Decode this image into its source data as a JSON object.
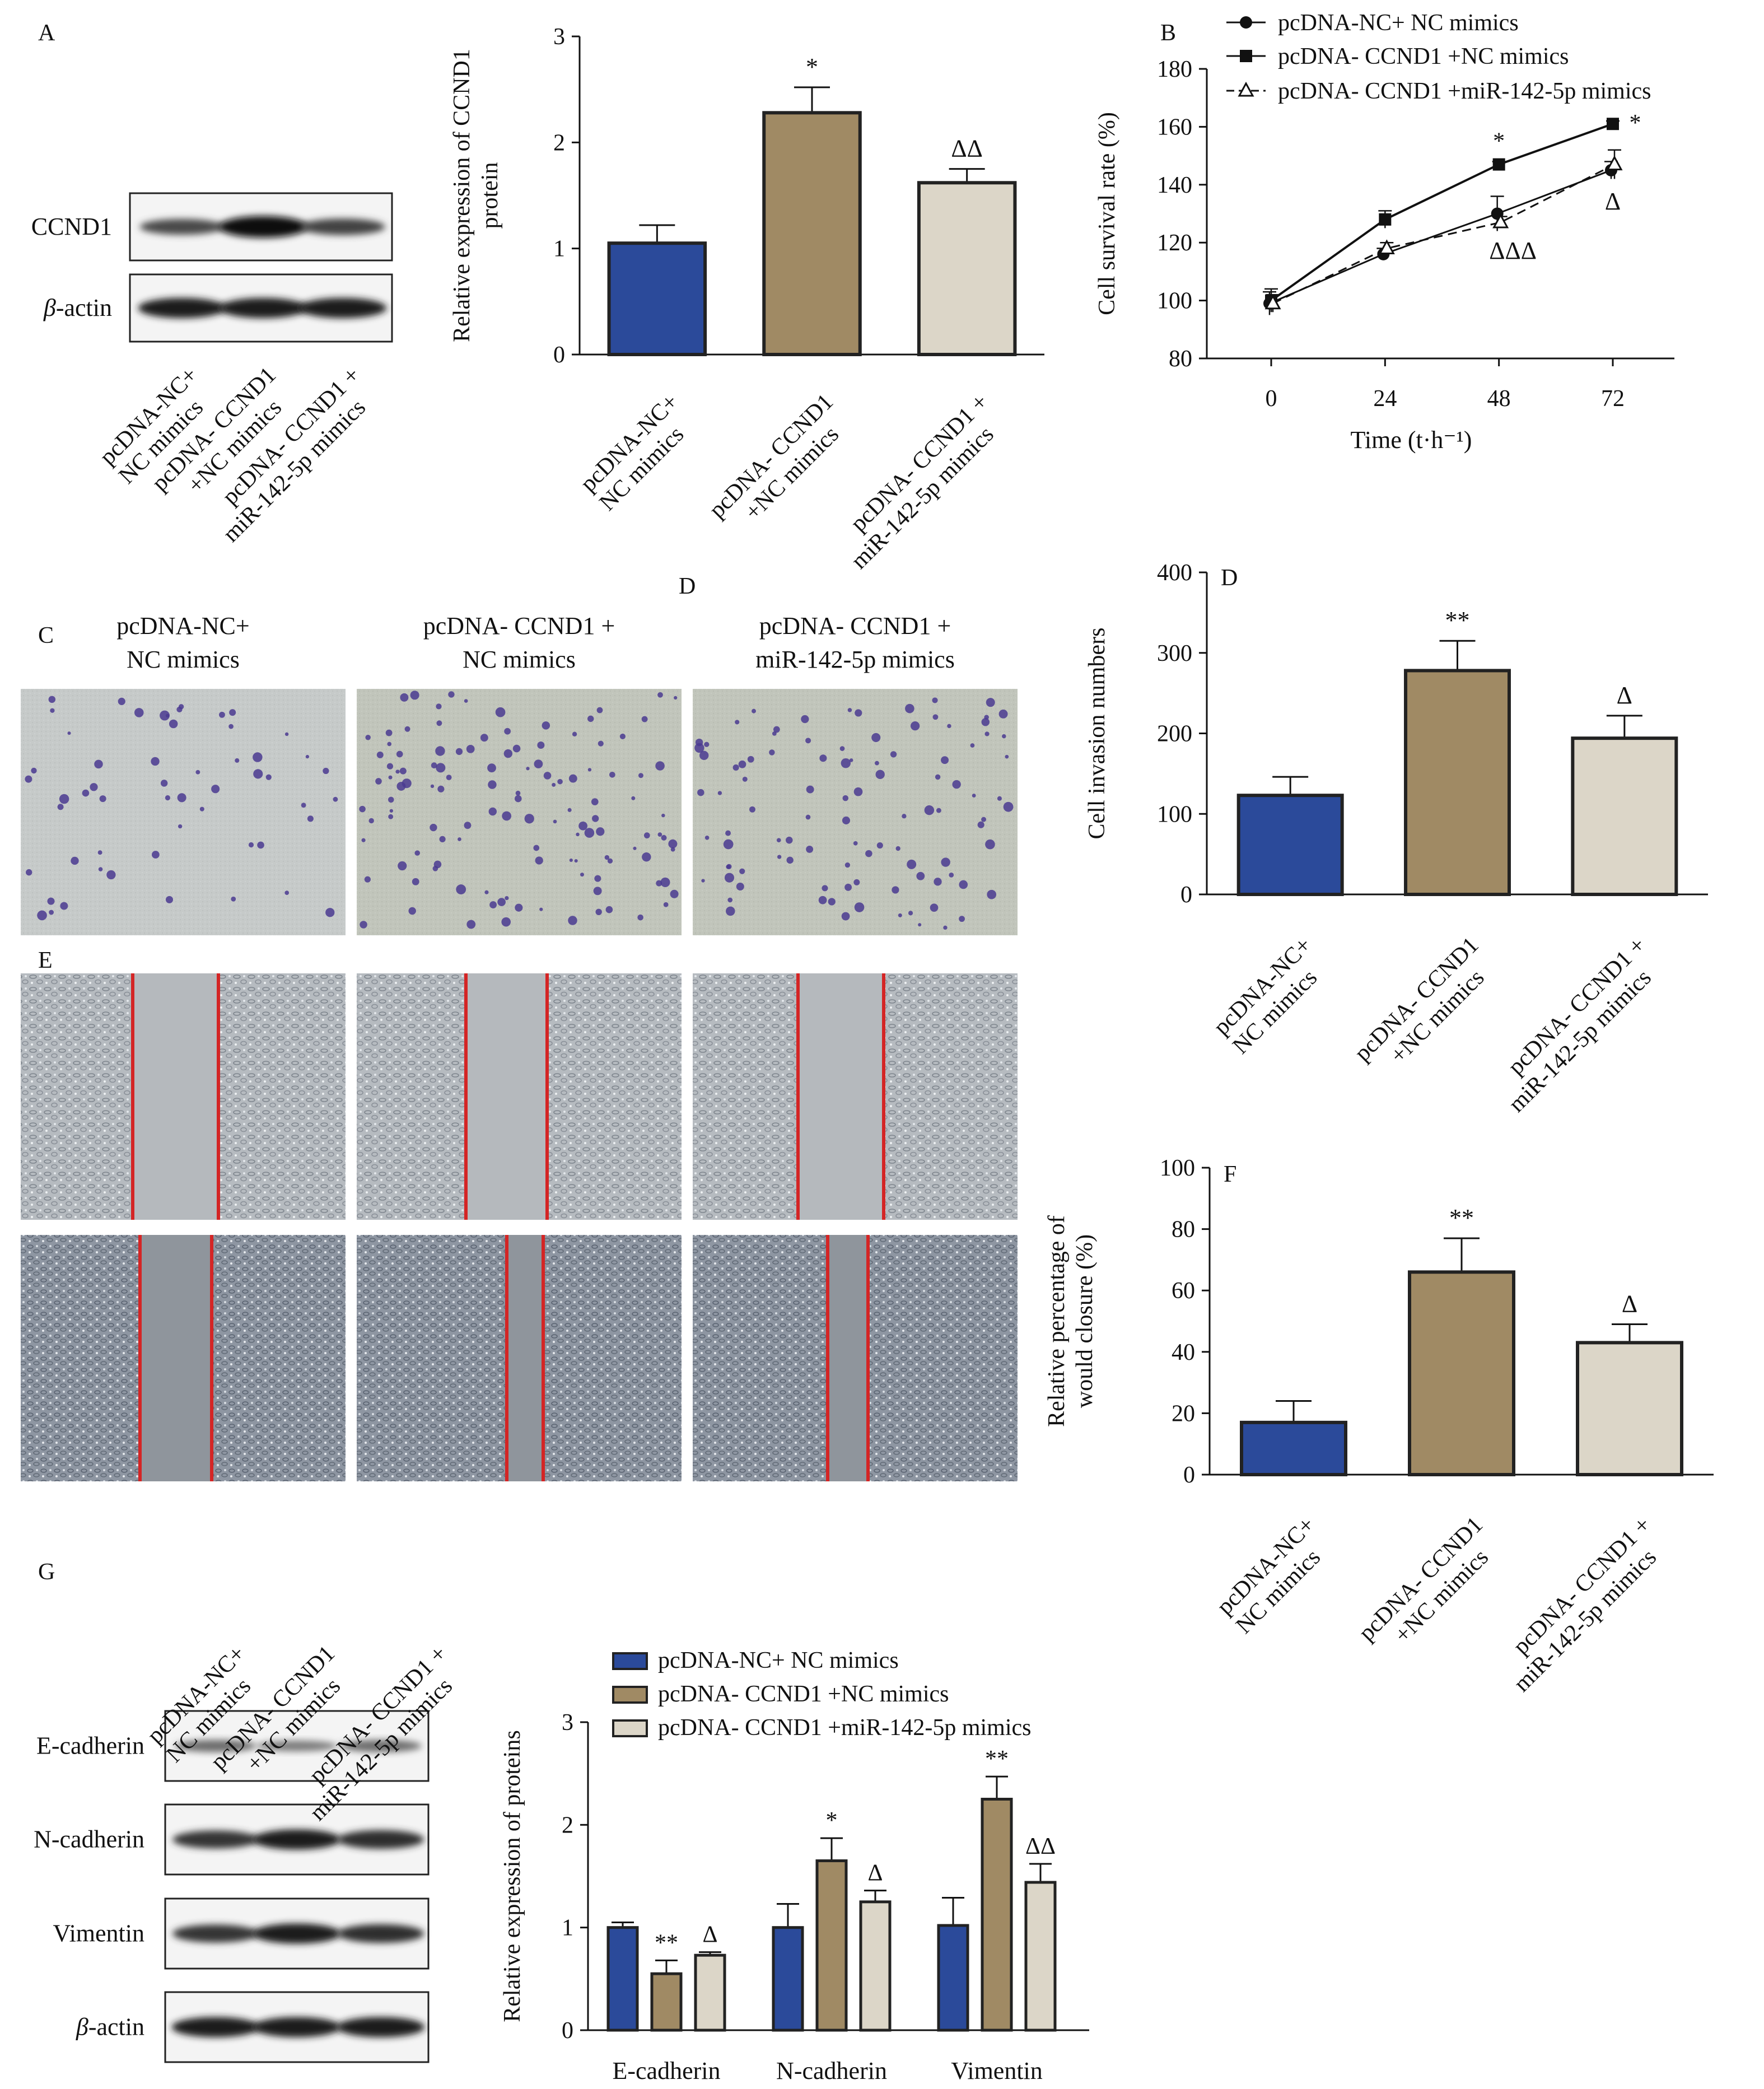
{
  "groups": [
    "pcDNA-NC+ NC mimics",
    "pcDNA- CCND1 +NC mimics",
    "pcDNA- CCND1 +miR-142-5p mimics"
  ],
  "group_labels_two_line": [
    [
      "pcDNA-NC+",
      "NC mimics"
    ],
    [
      "pcDNA- CCND1",
      "+NC mimics"
    ],
    [
      "pcDNA- CCND1 +",
      "miR-142-5p mimics"
    ]
  ],
  "colors": {
    "blue": "#2b4a9a",
    "tan": "#a08a64",
    "beige": "#dcd6c8",
    "outline": "#222222",
    "scratch_line": "#d42525",
    "stain": "#4a3a90"
  },
  "panel_letters": {
    "A": "A",
    "B": "B",
    "C": "C",
    "D": "D",
    "D2": "D",
    "E": "E",
    "F": "F",
    "G": "G"
  },
  "blot_A": {
    "rows": [
      "CCND1",
      "β-actin"
    ],
    "intensity": [
      [
        0.55,
        0.95,
        0.6
      ],
      [
        0.85,
        0.85,
        0.85
      ]
    ]
  },
  "blot_G": {
    "rows": [
      "E-cadherin",
      "N-cadherin",
      "Vimentin",
      "β-actin"
    ],
    "intensity": [
      [
        0.3,
        0.2,
        0.3
      ],
      [
        0.7,
        0.85,
        0.75
      ],
      [
        0.7,
        0.85,
        0.75
      ],
      [
        0.85,
        0.85,
        0.85
      ]
    ]
  },
  "panel_C_titles": [
    [
      "pcDNA-NC+",
      "NC mimics"
    ],
    [
      "pcDNA- CCND1 +",
      "NC mimics"
    ],
    [
      "pcDNA- CCND1 +",
      "miR-142-5p mimics"
    ]
  ],
  "chart_data": [
    {
      "id": "A",
      "type": "bar",
      "categories": [
        "pcDNA-NC+ NC mimics",
        "pcDNA- CCND1 +NC mimics",
        "pcDNA- CCND1 +miR-142-5p mimics"
      ],
      "values": [
        1.05,
        2.28,
        1.62
      ],
      "errors": [
        0.17,
        0.24,
        0.13
      ],
      "annotations": [
        "",
        "*",
        "ΔΔ"
      ],
      "ylabel": "Relative expression of CCND1 protein",
      "ylim": [
        0,
        3
      ],
      "yticks": [
        0,
        1,
        2,
        3
      ]
    },
    {
      "id": "B",
      "type": "line",
      "x": [
        0,
        24,
        48,
        72
      ],
      "xlabel": "Time (t·h⁻¹)",
      "ylabel": "Cell survival rate (%)",
      "ylim": [
        80,
        180
      ],
      "yticks": [
        80,
        100,
        120,
        140,
        160,
        180
      ],
      "legend": "top-right",
      "series": [
        {
          "name": "pcDNA-NC+ NC mimics",
          "values": [
            99,
            116,
            130,
            145
          ],
          "errors": [
            4,
            2,
            6,
            3
          ],
          "marker": "circle",
          "dash": false
        },
        {
          "name": "pcDNA- CCND1 +NC mimics",
          "values": [
            100,
            128,
            147,
            161
          ],
          "errors": [
            4,
            3,
            1,
            1
          ],
          "marker": "square",
          "dash": false
        },
        {
          "name": "pcDNA- CCND1 +miR-142-5p mimics",
          "values": [
            99,
            118,
            127,
            147
          ],
          "errors": [
            3,
            2,
            2,
            5
          ],
          "marker": "triangle",
          "dash": true
        }
      ],
      "annotations": [
        "*",
        "*",
        "ΔΔΔ",
        "Δ"
      ]
    },
    {
      "id": "D",
      "type": "bar",
      "categories": [
        "pcDNA-NC+ NC mimics",
        "pcDNA- CCND1 +NC mimics",
        "pcDNA- CCND1 +miR-142-5p mimics"
      ],
      "values": [
        123,
        278,
        194
      ],
      "errors": [
        23,
        37,
        28
      ],
      "annotations": [
        "",
        "**",
        "Δ"
      ],
      "ylabel": "Cell invasion numbers",
      "ylim": [
        0,
        400
      ],
      "yticks": [
        0,
        100,
        200,
        300,
        400
      ]
    },
    {
      "id": "F",
      "type": "bar",
      "categories": [
        "pcDNA-NC+ NC mimics",
        "pcDNA- CCND1 +NC mimics",
        "pcDNA- CCND1 +miR-142-5p mimics"
      ],
      "values": [
        17,
        66,
        43
      ],
      "errors": [
        7,
        11,
        6
      ],
      "annotations": [
        "",
        "**",
        "Δ"
      ],
      "ylabel": "Relative percentage of would closure (%)",
      "ylabel_lines": [
        "Relative percentage of",
        "would closure (%)"
      ],
      "ylim": [
        0,
        100
      ],
      "yticks": [
        0,
        20,
        40,
        60,
        80,
        100
      ]
    },
    {
      "id": "G",
      "type": "bar",
      "categories": [
        "E-cadherin",
        "N-cadherin",
        "Vimentin"
      ],
      "series": [
        {
          "name": "pcDNA-NC+ NC mimics",
          "values": [
            1.0,
            1.0,
            1.02
          ],
          "errors": [
            0.05,
            0.23,
            0.27
          ]
        },
        {
          "name": "pcDNA- CCND1 +NC mimics",
          "values": [
            0.55,
            1.65,
            2.25
          ],
          "errors": [
            0.13,
            0.22,
            0.22
          ]
        },
        {
          "name": "pcDNA- CCND1 +miR-142-5p mimics",
          "values": [
            0.73,
            1.25,
            1.44
          ],
          "errors": [
            0.03,
            0.11,
            0.18
          ]
        }
      ],
      "annotations": [
        [
          "",
          "**",
          "Δ"
        ],
        [
          "",
          "*",
          "Δ"
        ],
        [
          "",
          "**",
          "ΔΔ"
        ]
      ],
      "ylabel": "Relative expression of proteins",
      "ylim": [
        0,
        3
      ],
      "yticks": [
        0,
        1,
        2,
        3
      ],
      "legend": "top"
    }
  ]
}
